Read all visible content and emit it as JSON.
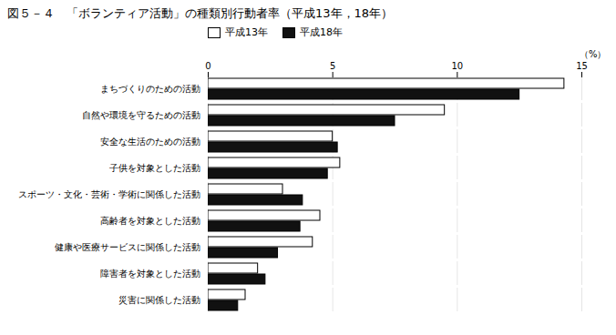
{
  "chart_data": {
    "type": "bar",
    "orientation": "horizontal",
    "title": "図５－４　「ボランティア活動」の種類別行動者率（平成13年，18年）",
    "categories": [
      "まちづくりのための活動",
      "自然や環境を守るための活動",
      "安全な生活のための活動",
      "子供を対象とした活動",
      "スポーツ・文化・芸術・学術に関係した活動",
      "高齢者を対象とした活動",
      "健康や医療サービスに関係した活動",
      "障害者を対象とした活動",
      "災害に関係した活動"
    ],
    "series": [
      {
        "name": "平成13年",
        "color": "#ffffff",
        "values": [
          14.3,
          9.5,
          5.0,
          5.3,
          3.0,
          4.5,
          4.2,
          2.0,
          1.5
        ]
      },
      {
        "name": "平成18年",
        "color": "#111111",
        "values": [
          12.5,
          7.5,
          5.2,
          4.8,
          3.8,
          3.7,
          2.8,
          2.3,
          1.2
        ]
      }
    ],
    "xlabel": "（%）",
    "xlim": [
      0,
      15
    ],
    "xticks": [
      0,
      5,
      10,
      15
    ],
    "grid": true,
    "legend": "top"
  }
}
